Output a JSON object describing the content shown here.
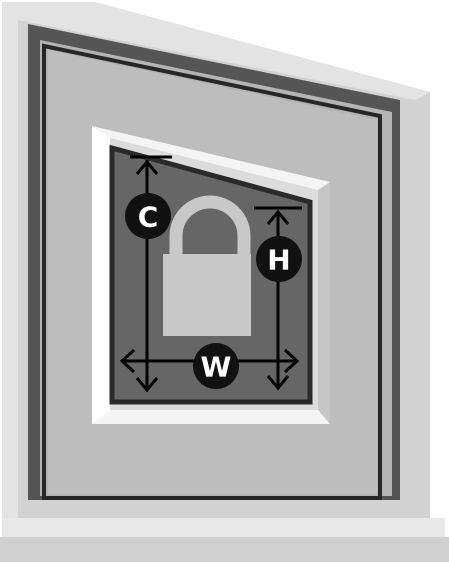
{
  "diagram": {
    "labels": {
      "c": "C",
      "h": "H",
      "w": "W"
    },
    "icon": "padlock-icon",
    "colors": {
      "outer_frame": "#cfcfcf",
      "outer_frame_light": "#e4e4e4",
      "frame_border": "#5a5a5a",
      "frame_inner_line": "#2f2f2f",
      "window_panel": "#bfbfbf",
      "trim_light": "#f2f2f2",
      "trim_mid": "#d8d8d8",
      "glass": "#666666",
      "glass_edge": "#2a2a2a",
      "lock": "#c8c8c8",
      "marker": "#111111",
      "arrow": "#000000"
    }
  }
}
